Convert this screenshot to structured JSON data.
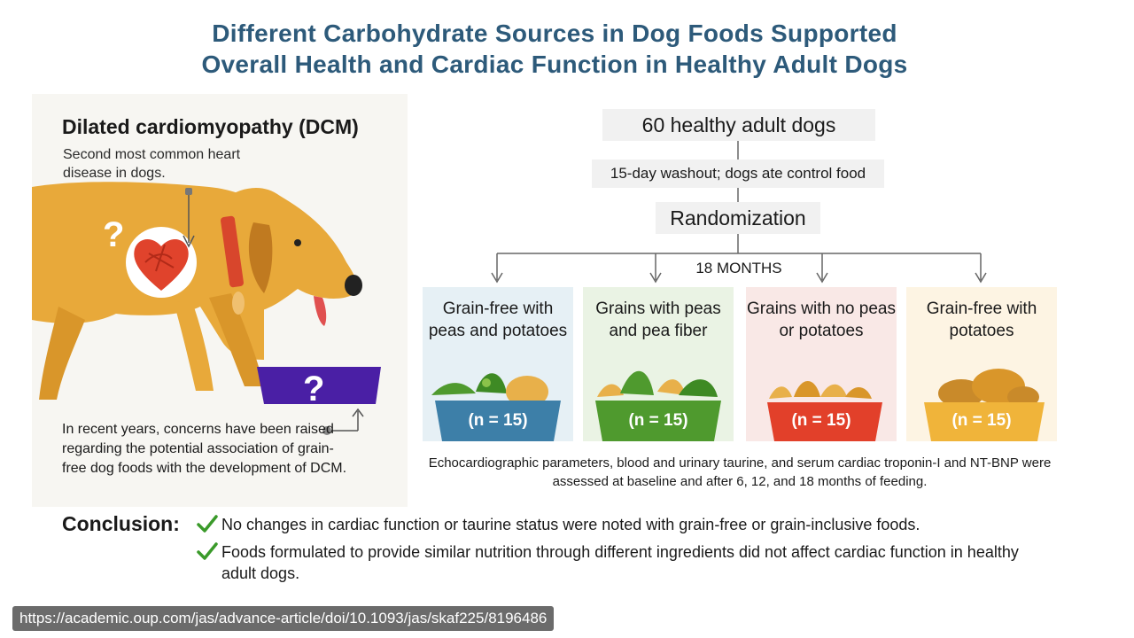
{
  "title": {
    "line1": "Different Carbohydrate Sources in Dog Foods Supported",
    "line2": "Overall Health and Cardiac Function in Healthy Adult Dogs"
  },
  "left_panel": {
    "heading": "Dilated cardiomyopathy (DCM)",
    "subtitle": "Second most common heart disease in dogs.",
    "note": "In recent years, concerns have been raised regarding the potential association of grain-free dog foods with the development of DCM.",
    "question_mark": "?",
    "bowl_question_mark": "?"
  },
  "flow": {
    "population": "60 healthy adult dogs",
    "washout": "15-day washout; dogs ate control food",
    "randomization": "Randomization",
    "duration": "18 MONTHS"
  },
  "arms": [
    {
      "label": "Grain-free with peas and potatoes",
      "n": "(n = 15)",
      "bowl_color": "#3d7fa8",
      "bg_color": "#e6f0f5"
    },
    {
      "label": "Grains with peas and pea fiber",
      "n": "(n = 15)",
      "bowl_color": "#4f9a2e",
      "bg_color": "#eaf3e4"
    },
    {
      "label": "Grains with no peas or potatoes",
      "n": "(n = 15)",
      "bowl_color": "#e2402a",
      "bg_color": "#f9e8e6"
    },
    {
      "label": "Grain-free with potatoes",
      "n": "(n = 15)",
      "bowl_color": "#f0b43a",
      "bg_color": "#fdf4e3"
    }
  ],
  "assessment": "Echocardiographic parameters, blood and urinary taurine, and serum cardiac troponin-I and NT-BNP were assessed at baseline and after 6, 12, and 18 months of feeding.",
  "conclusion": {
    "label": "Conclusion:",
    "items": [
      "No changes in cardiac function or taurine status were noted with grain-free or grain-inclusive foods.",
      "Foods formulated to provide similar nutrition through different ingredients did not affect cardiac function in healthy adult dogs."
    ],
    "check_color": "#3a9a2a"
  },
  "source_url": "https://academic.oup.com/jas/advance-article/doi/10.1093/jas/skaf225/8196486",
  "icons": [
    "dog-illustration",
    "heart-icon",
    "food-bowl-icon",
    "check-icon"
  ]
}
